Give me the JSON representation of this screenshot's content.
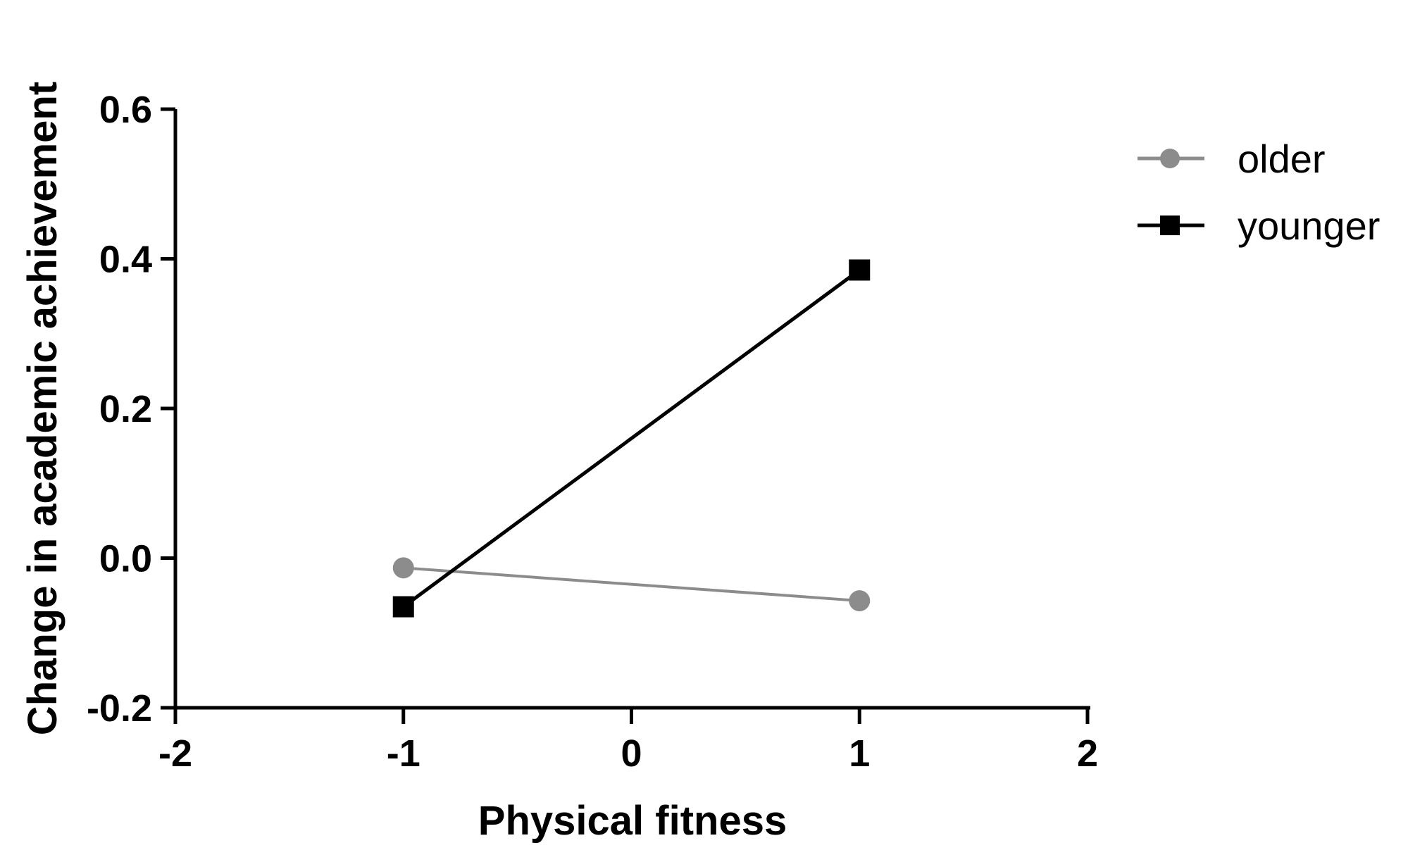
{
  "chart_data": {
    "type": "line",
    "xlabel": "Physical fitness",
    "ylabel": "Change in academic achievement",
    "xlim": [
      -2,
      2
    ],
    "ylim": [
      -0.2,
      0.6
    ],
    "x_ticks": [
      "-2",
      "-1",
      "0",
      "1",
      "2"
    ],
    "y_ticks": [
      "-0.2",
      "0.0",
      "0.2",
      "0.4",
      "0.6"
    ],
    "grid": false,
    "legend_position": "top-right",
    "series": [
      {
        "name": "older",
        "marker": "circle",
        "color": "#8c8c8c",
        "x": [
          -1,
          1
        ],
        "y": [
          -0.013,
          -0.057
        ]
      },
      {
        "name": "younger",
        "marker": "square",
        "color": "#000000",
        "x": [
          -1,
          1
        ],
        "y": [
          -0.065,
          0.385
        ]
      }
    ]
  }
}
